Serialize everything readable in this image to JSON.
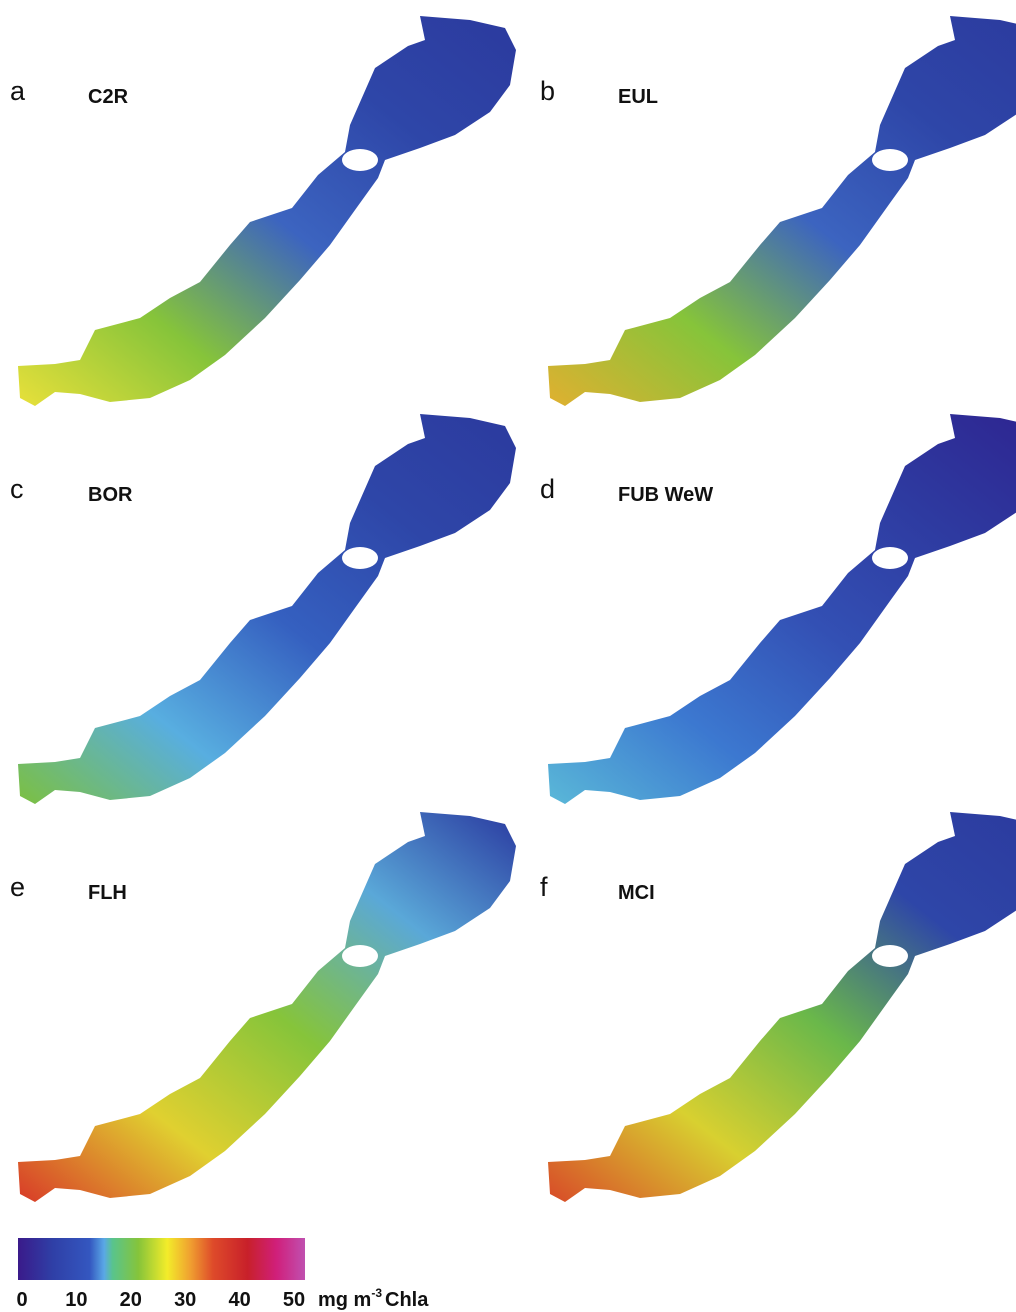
{
  "panels": [
    {
      "letter": "a",
      "method": "C2R"
    },
    {
      "letter": "b",
      "method": "EUL"
    },
    {
      "letter": "c",
      "method": "BOR"
    },
    {
      "letter": "d",
      "method": "FUB WeW"
    },
    {
      "letter": "e",
      "method": "FLH"
    },
    {
      "letter": "f",
      "method": "MCI"
    }
  ],
  "colorbar": {
    "ticks": [
      0,
      10,
      20,
      30,
      40,
      50
    ],
    "unit": "mg m",
    "exponent": "-3",
    "quantity": "Chla"
  }
}
